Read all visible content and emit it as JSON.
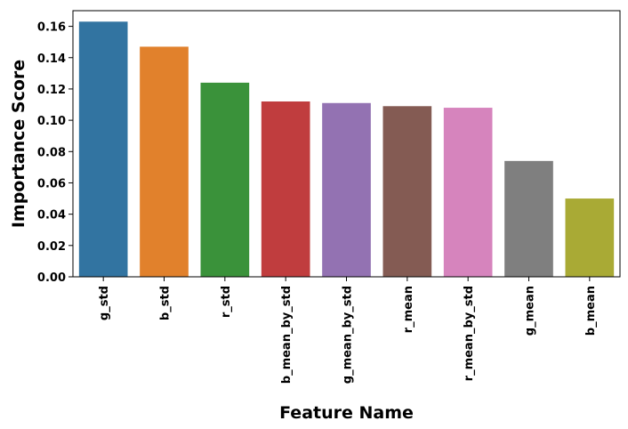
{
  "chart_data": {
    "type": "bar",
    "title": "",
    "xlabel": "Feature Name",
    "ylabel": "Importance Score",
    "categories": [
      "g_std",
      "b_std",
      "r_std",
      "b_mean_by_std",
      "g_mean_by_std",
      "r_mean",
      "r_mean_by_std",
      "g_mean",
      "b_mean"
    ],
    "values": [
      0.163,
      0.147,
      0.124,
      0.112,
      0.111,
      0.109,
      0.108,
      0.074,
      0.05
    ],
    "colors": [
      "#3274a1",
      "#e1812c",
      "#3a923a",
      "#c03d3e",
      "#9372b2",
      "#845b53",
      "#d684bd",
      "#7f7f7f",
      "#a9aa35"
    ],
    "ylim": [
      0,
      0.17
    ],
    "yticks": [
      "0.00",
      "0.02",
      "0.04",
      "0.06",
      "0.08",
      "0.10",
      "0.12",
      "0.14",
      "0.16"
    ],
    "grid": false,
    "legend": "none"
  }
}
